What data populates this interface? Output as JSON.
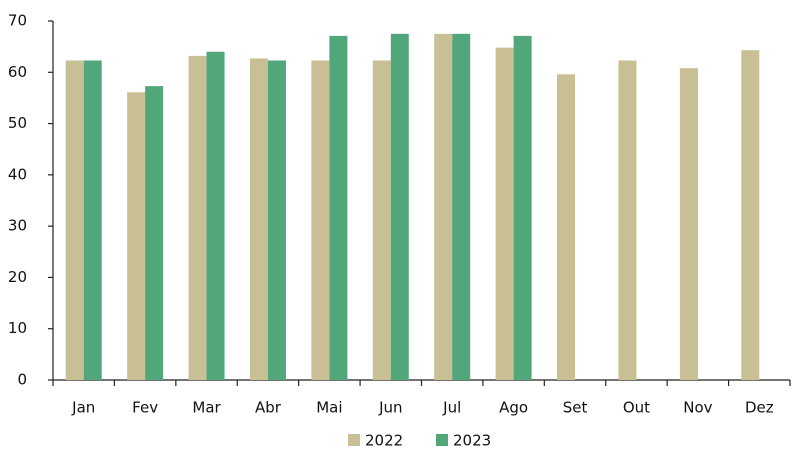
{
  "chart_data": {
    "type": "bar",
    "categories": [
      "Jan",
      "Fev",
      "Mar",
      "Abr",
      "Mai",
      "Jun",
      "Jul",
      "Ago",
      "Set",
      "Out",
      "Nov",
      "Dez"
    ],
    "series": [
      {
        "name": "2022",
        "color": "#c8bf95",
        "values": [
          62.3,
          56.1,
          63.2,
          62.7,
          62.3,
          62.3,
          67.5,
          64.8,
          59.6,
          62.3,
          60.8,
          64.3
        ]
      },
      {
        "name": "2023",
        "color": "#52a77a",
        "values": [
          62.3,
          57.3,
          64.0,
          62.3,
          67.1,
          67.5,
          67.5,
          67.1,
          null,
          null,
          null,
          null
        ]
      }
    ],
    "ylim": [
      0,
      70
    ],
    "yticks": [
      0,
      10,
      20,
      30,
      40,
      50,
      60,
      70
    ],
    "grid": false,
    "legend": "bottom"
  }
}
